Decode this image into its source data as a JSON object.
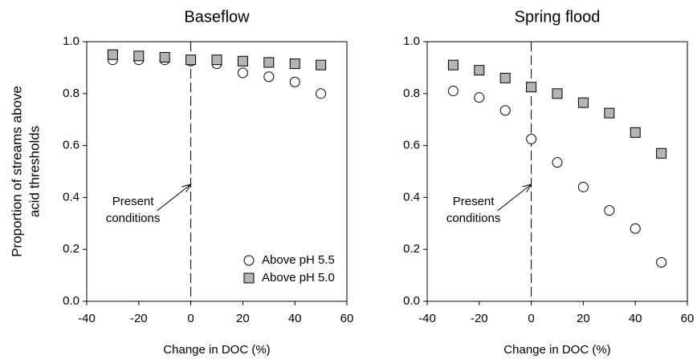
{
  "chart_data": [
    {
      "type": "scatter",
      "title": "Baseflow",
      "xlabel": "Change in DOC (%)",
      "ylabel": [
        "Proportion of streams above",
        "acid thresholds"
      ],
      "annotation": [
        "Present",
        "conditions"
      ],
      "x": [
        -30,
        -20,
        -10,
        0,
        10,
        20,
        30,
        40,
        50
      ],
      "series": [
        {
          "name": "Above pH 5.5",
          "marker": "circle",
          "color": "#ffffff",
          "values": [
            0.93,
            0.93,
            0.93,
            0.925,
            0.915,
            0.88,
            0.865,
            0.845,
            0.8
          ]
        },
        {
          "name": "Above pH 5.0",
          "marker": "square",
          "color": "#b4b4b4",
          "values": [
            0.95,
            0.945,
            0.94,
            0.93,
            0.93,
            0.925,
            0.92,
            0.915,
            0.91
          ]
        }
      ],
      "legend": "lower right",
      "xlim": [
        -40,
        60
      ],
      "xticks": [
        -40,
        -20,
        0,
        20,
        40,
        60
      ],
      "ylim": [
        0,
        1
      ],
      "yticks": [
        {
          "value": 0,
          "label": "0.0"
        },
        0.2,
        0.4,
        0.6,
        0.8,
        {
          "value": 1,
          "label": "1.0"
        }
      ]
    },
    {
      "type": "scatter",
      "title": "Spring flood",
      "xlabel": "Change in DOC (%)",
      "annotation": [
        "Present",
        "conditions"
      ],
      "x": [
        -30,
        -20,
        -10,
        0,
        10,
        20,
        30,
        40,
        50
      ],
      "series": [
        {
          "marker": "circle",
          "color": "#ffffff",
          "values": [
            0.81,
            0.785,
            0.735,
            0.625,
            0.535,
            0.44,
            0.35,
            0.28,
            0.15
          ]
        },
        {
          "marker": "square",
          "color": "#b4b4b4",
          "values": [
            0.91,
            0.89,
            0.86,
            0.825,
            0.8,
            0.765,
            0.725,
            0.65,
            0.57
          ]
        }
      ],
      "xlim": [
        -40,
        60
      ],
      "xticks": [
        -40,
        -20,
        0,
        20,
        40,
        60
      ],
      "ylim": [
        0,
        1
      ],
      "yticks": [
        {
          "value": 0,
          "label": "0.0"
        },
        0.2,
        0.4,
        0.6,
        0.8,
        {
          "value": 1,
          "label": "1.0"
        }
      ]
    }
  ]
}
